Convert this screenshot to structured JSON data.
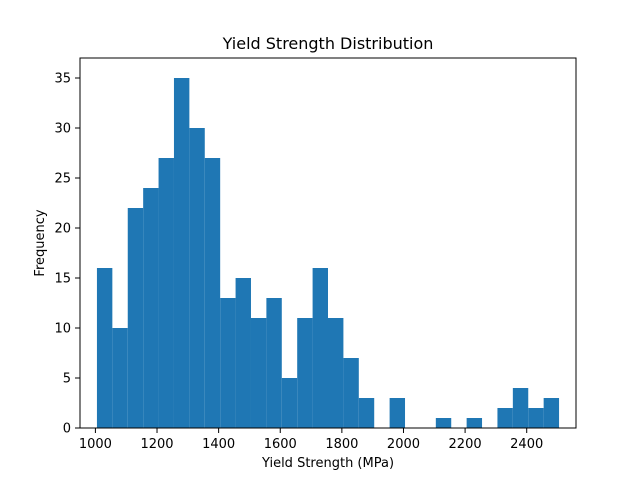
{
  "chart_data": {
    "type": "bar",
    "title": "Yield Strength Distribution",
    "xlabel": "Yield Strength (MPa)",
    "ylabel": "Frequency",
    "xlim": [
      950,
      2560
    ],
    "ylim": [
      0,
      37
    ],
    "grid": false,
    "bar_color": "#1f77b4",
    "bin_start": 1005,
    "bin_width": 50,
    "values": [
      16,
      10,
      22,
      24,
      27,
      35,
      30,
      27,
      13,
      15,
      11,
      13,
      5,
      11,
      16,
      11,
      7,
      3,
      0,
      3,
      0,
      0,
      1,
      0,
      1,
      0,
      2,
      4,
      2,
      3
    ],
    "x_ticks": [
      1000,
      1200,
      1400,
      1600,
      1800,
      2000,
      2200,
      2400
    ],
    "y_ticks": [
      0,
      5,
      10,
      15,
      20,
      25,
      30,
      35
    ]
  }
}
